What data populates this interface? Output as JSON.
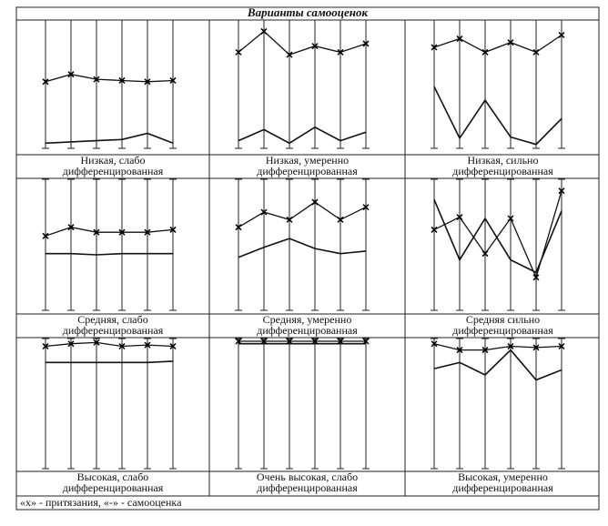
{
  "title": "Варианты самооценок",
  "cells": [
    {
      "caption": [
        "Низкая, слабо",
        "дифференцированная"
      ],
      "claims": [
        52,
        58,
        54,
        53,
        52,
        53
      ],
      "self_esteem": [
        2,
        3,
        4,
        5,
        10,
        2
      ]
    },
    {
      "caption": [
        "Низкая, умеренно",
        "дифференцированная"
      ],
      "claims": [
        76,
        93,
        74,
        81,
        76,
        83
      ],
      "self_esteem": [
        4,
        13,
        2,
        15,
        4,
        11
      ]
    },
    {
      "caption": [
        "Низкая, сильно",
        "дифференцированная"
      ],
      "claims": [
        80,
        87,
        76,
        84,
        76,
        90
      ],
      "self_esteem": [
        48,
        6,
        37,
        7,
        1,
        22
      ]
    },
    {
      "caption": [
        "Средняя, слабо",
        "дифференцированная"
      ],
      "claims": [
        57,
        64,
        60,
        60,
        60,
        62
      ],
      "self_esteem": [
        43,
        43,
        42,
        43,
        43,
        43
      ]
    },
    {
      "caption": [
        "Средняя, умеренно",
        "дифференцированная"
      ],
      "claims": [
        64,
        76,
        70,
        84,
        70,
        80
      ],
      "self_esteem": [
        40,
        48,
        55,
        47,
        43,
        45
      ]
    },
    {
      "caption": [
        "Средняя сильно",
        "дифференцированная"
      ],
      "claims": [
        62,
        72,
        43,
        71,
        24,
        93
      ],
      "self_esteem": [
        86,
        38,
        71,
        38,
        28,
        77
      ]
    },
    {
      "caption": [
        "Высокая, слабо",
        "дифференцированная"
      ],
      "claims": [
        96,
        98,
        99,
        96,
        97,
        96
      ],
      "self_esteem": [
        83,
        83,
        83,
        83,
        83,
        84
      ]
    },
    {
      "caption": [
        "Очень высокая, слабо",
        "дифференцированная"
      ],
      "claims": [
        100,
        100,
        100,
        100,
        100,
        100
      ],
      "self_esteem": [
        98,
        98,
        98,
        98,
        98,
        98
      ]
    },
    {
      "caption": [
        "Высокая, умеренно",
        "дифференцированная"
      ],
      "claims": [
        98,
        93,
        93,
        96,
        95,
        96
      ],
      "self_esteem": [
        78,
        83,
        73,
        93,
        69,
        77
      ]
    }
  ],
  "footer": "«х» - притязания,  «-» - самооценка"
}
